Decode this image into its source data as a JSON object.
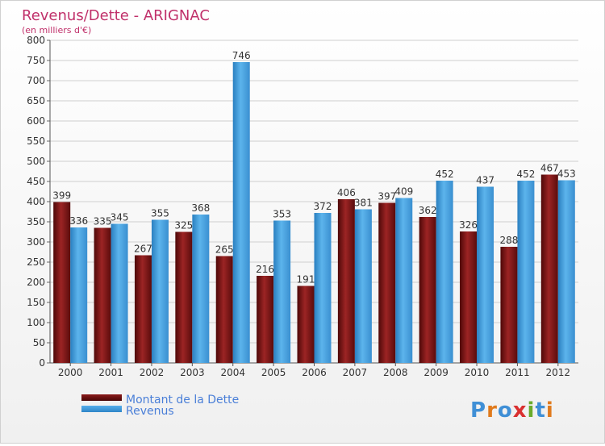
{
  "chart_data": {
    "type": "bar",
    "title": "Revenus/Dette - ARIGNAC",
    "subtitle": "(en milliers d'€)",
    "categories": [
      "2000",
      "2001",
      "2002",
      "2003",
      "2004",
      "2005",
      "2006",
      "2007",
      "2008",
      "2009",
      "2010",
      "2011",
      "2012"
    ],
    "series": [
      {
        "name": "Montant de la Dette",
        "color": "#8b1a1a",
        "values": [
          399,
          335,
          267,
          325,
          265,
          216,
          191,
          406,
          397,
          362,
          326,
          288,
          467
        ]
      },
      {
        "name": "Revenus",
        "color": "#4aa3e0",
        "values": [
          336,
          345,
          355,
          368,
          746,
          353,
          372,
          381,
          409,
          452,
          437,
          452,
          453
        ]
      }
    ],
    "ylim": [
      0,
      800
    ],
    "yticks": [
      0,
      50,
      100,
      150,
      200,
      250,
      300,
      350,
      400,
      450,
      500,
      550,
      600,
      650,
      700,
      750,
      800
    ],
    "grid": true,
    "legend_position": "bottom-left"
  },
  "brand": {
    "text": "Proxiti"
  }
}
